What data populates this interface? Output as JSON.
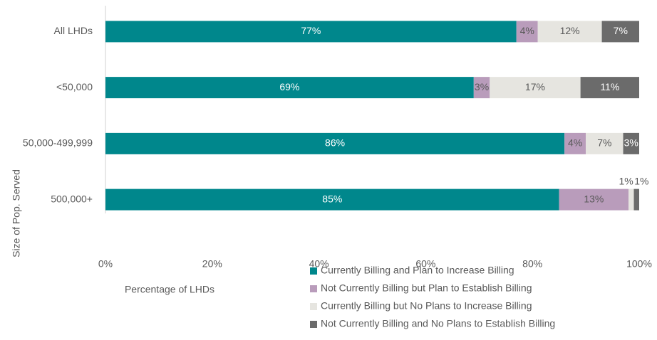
{
  "chart_data": {
    "type": "stacked-barh",
    "categories": [
      "All LHDs",
      "<50,000",
      "50,000-499,999",
      "500,000+"
    ],
    "series": [
      {
        "name": "Currently Billing and Plan to Increase Billing",
        "color": "#00878c",
        "values": [
          77,
          69,
          86,
          85
        ],
        "value_labels": [
          "77%",
          "69%",
          "86%",
          "85%"
        ]
      },
      {
        "name": "Not Currently Billing but Plan to Establish Billing",
        "color": "#b99cbb",
        "values": [
          4,
          3,
          4,
          13
        ],
        "value_labels": [
          "4%",
          "3%",
          "4%",
          "13%"
        ]
      },
      {
        "name": "Currently Billing but No Plans to Increase Billing",
        "color": "#e6e5e0",
        "values": [
          12,
          17,
          7,
          1
        ],
        "value_labels": [
          "12%",
          "17%",
          "7%",
          "1%"
        ]
      },
      {
        "name": "Not Currently Billing and No Plans to Establish Billing",
        "color": "#6b6b6b",
        "values": [
          7,
          11,
          3,
          1
        ],
        "value_labels": [
          "7%",
          "11%",
          "3%",
          "1%"
        ]
      }
    ],
    "xlabel": "Percentage of LHDs",
    "ylabel": "Size of Pop. Served",
    "xlim": [
      0,
      100
    ],
    "xticks": [
      {
        "value": 0,
        "label": "0%"
      },
      {
        "value": 20,
        "label": "20%"
      },
      {
        "value": 40,
        "label": "40%"
      },
      {
        "value": 60,
        "label": "60%"
      },
      {
        "value": 80,
        "label": "80%"
      },
      {
        "value": 100,
        "label": "100%"
      }
    ],
    "grid": false,
    "legend": "bottom"
  }
}
